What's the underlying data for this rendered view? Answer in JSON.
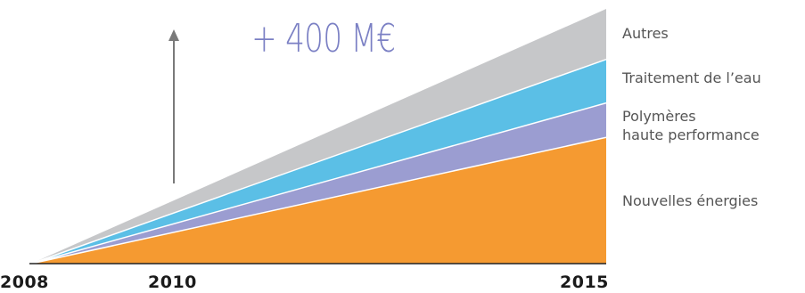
{
  "headline": "+ 400 M€",
  "chart_data": {
    "type": "area",
    "stacked": true,
    "x": [
      "2008",
      "2015"
    ],
    "tick_labels": [
      "2008",
      "2010",
      "2015"
    ],
    "series": [
      {
        "name": "Nouvelles énergies",
        "values": [
          0,
          55
        ],
        "color": "#f59a31"
      },
      {
        "name": "Polymères haute performance",
        "values": [
          0,
          15
        ],
        "color": "#9b9dd1"
      },
      {
        "name": "Traitement de l'eau",
        "values": [
          0,
          19
        ],
        "color": "#5bbfe6"
      },
      {
        "name": "Autres",
        "values": [
          0,
          22
        ],
        "color": "#c6c7c9"
      }
    ],
    "legend": {
      "autres": "Autres",
      "eau": "Traitement de l’eau",
      "polymeres_line1": "Polymères",
      "polymeres_line2": "haute performance",
      "energies": "Nouvelles énergies"
    },
    "arrow_color": "#7a7a7a",
    "axis_color": "#222222"
  }
}
